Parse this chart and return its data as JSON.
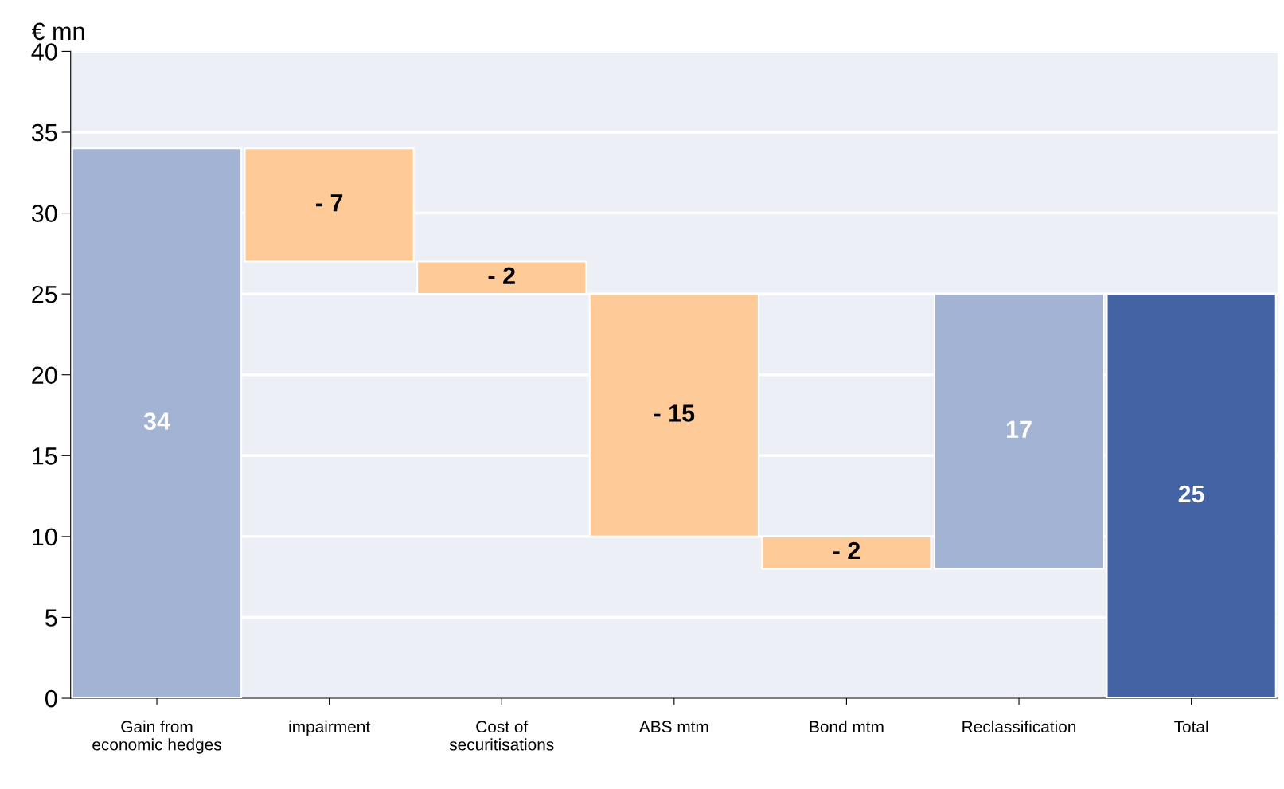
{
  "chart_data": {
    "type": "bar",
    "ylabel": "€ mn",
    "categories": [
      "Gain from\neconomic hedges",
      "impairment",
      "Cost of\nsecuritisations",
      "ABS mtm",
      "Bond mtm",
      "Reclassification",
      "Total"
    ],
    "values": [
      34,
      -7,
      -2,
      -15,
      -2,
      17,
      25
    ],
    "base": [
      0,
      34,
      27,
      25,
      10,
      8,
      0
    ],
    "colors": [
      "#a3b3d3",
      "#fecb98",
      "#fecb98",
      "#fecb98",
      "#fecb98",
      "#a3b3d3",
      "#4463a5"
    ],
    "value_labels": [
      "34",
      "- 7",
      "- 2",
      "- 15",
      "- 2",
      "17",
      "25"
    ],
    "ylim": [
      0,
      40
    ],
    "yticks": [
      0,
      5,
      10,
      15,
      20,
      25,
      30,
      35,
      40
    ],
    "grid": "y"
  }
}
